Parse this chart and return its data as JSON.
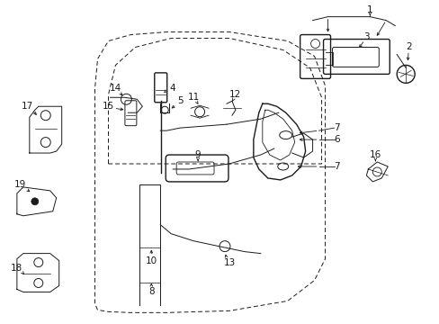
{
  "bg_color": "#ffffff",
  "line_color": "#1a1a1a",
  "fig_width": 4.89,
  "fig_height": 3.6,
  "dpi": 100,
  "door_x": [
    1.08,
    1.05,
    1.05,
    1.08,
    1.2,
    1.45,
    1.85,
    2.55,
    3.2,
    3.5,
    3.62,
    3.62,
    3.5,
    3.2,
    2.55,
    1.85,
    1.45,
    1.2,
    1.08
  ],
  "door_y": [
    0.15,
    0.22,
    2.62,
    2.95,
    3.15,
    3.22,
    3.25,
    3.25,
    3.15,
    2.98,
    2.65,
    0.72,
    0.48,
    0.25,
    0.14,
    0.12,
    0.12,
    0.13,
    0.15
  ],
  "win_x": [
    1.2,
    1.2,
    1.28,
    1.5,
    1.9,
    2.55,
    3.15,
    3.45,
    3.58,
    3.58,
    1.2
  ],
  "win_y": [
    1.78,
    2.55,
    2.88,
    3.08,
    3.18,
    3.18,
    3.05,
    2.85,
    2.52,
    1.78,
    1.78
  ],
  "label_fontsize": 7.5
}
